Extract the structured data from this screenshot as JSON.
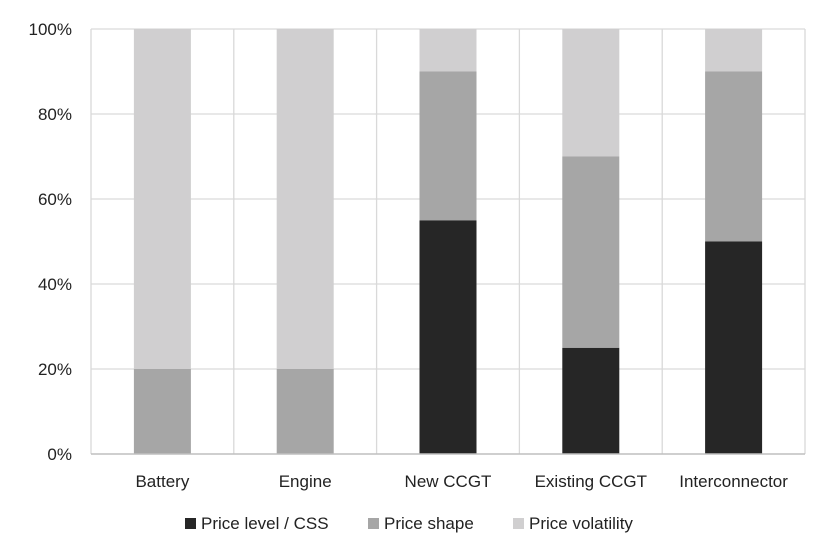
{
  "chart_data": {
    "type": "bar",
    "stacked": true,
    "categories": [
      "Battery",
      "Engine",
      "New CCGT",
      "Existing CCGT",
      "Interconnector"
    ],
    "series": [
      {
        "name": "Price level / CSS",
        "color": "#262626",
        "values": [
          0,
          0,
          55,
          25,
          50
        ]
      },
      {
        "name": "Price shape",
        "color": "#a6a6a6",
        "values": [
          20,
          20,
          35,
          45,
          40
        ]
      },
      {
        "name": "Price volatility",
        "color": "#d0cfd0",
        "values": [
          80,
          80,
          10,
          30,
          10
        ]
      }
    ],
    "y_ticks": [
      "0%",
      "20%",
      "40%",
      "60%",
      "80%",
      "100%"
    ],
    "ylim": [
      0,
      100
    ],
    "grid": true,
    "legend_position": "bottom"
  }
}
